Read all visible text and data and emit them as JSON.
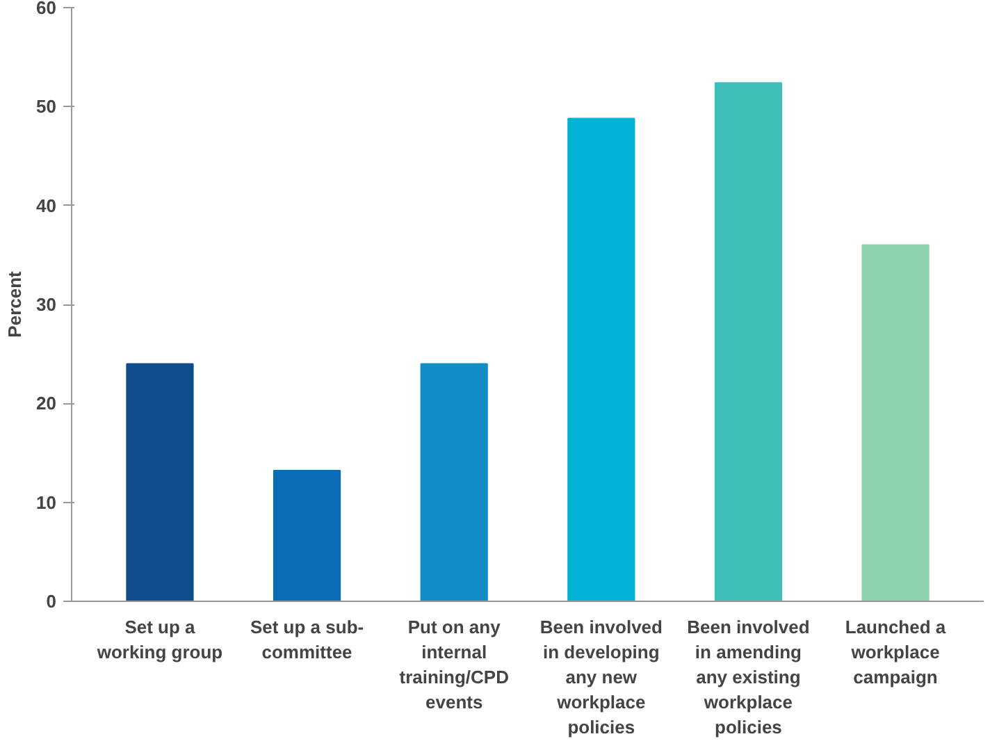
{
  "chart_data": {
    "type": "bar",
    "ylabel": "Percent",
    "categories": [
      "Set up a working group",
      "Set up a sub-committee",
      "Put on any internal training/CPD events",
      "Been involved in developing any new workplace policies",
      "Been involved in amending any existing workplace policies",
      "Launched a workplace campaign"
    ],
    "values": [
      24,
      13.2,
      24,
      48.8,
      52.4,
      36
    ],
    "colors": [
      "#0f4c8c",
      "#0b6db6",
      "#138dc6",
      "#00b3d6",
      "#3fbfb7",
      "#8ed2ad"
    ],
    "ylim": [
      0,
      60
    ],
    "yticks": [
      0,
      10,
      20,
      30,
      40,
      50,
      60
    ],
    "grid": false
  }
}
